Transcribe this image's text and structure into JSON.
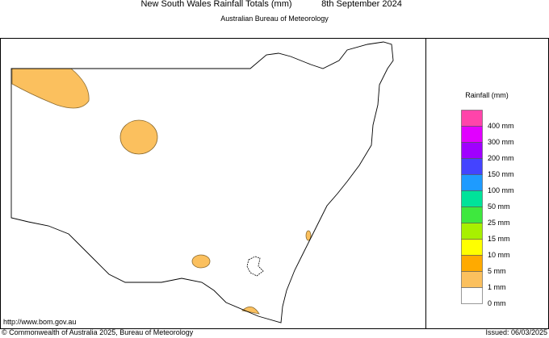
{
  "header": {
    "title": "New South Wales Rainfall Totals (mm)",
    "date": "8th September 2024",
    "subtitle": "Australian Bureau of Meteorology"
  },
  "legend": {
    "title": "Rainfall (mm)",
    "items": [
      {
        "label": "400 mm",
        "color": "#ff44aa"
      },
      {
        "label": "300 mm",
        "color": "#e100ff"
      },
      {
        "label": "200 mm",
        "color": "#a000ff"
      },
      {
        "label": "150 mm",
        "color": "#4444ff"
      },
      {
        "label": "100 mm",
        "color": "#1e9bff"
      },
      {
        "label": "50 mm",
        "color": "#00e39a"
      },
      {
        "label": "25 mm",
        "color": "#3ee83e"
      },
      {
        "label": "15 mm",
        "color": "#a8f000"
      },
      {
        "label": "10 mm",
        "color": "#ffff00"
      },
      {
        "label": "5 mm",
        "color": "#ffaa00"
      },
      {
        "label": "1 mm",
        "color": "#fbc05e"
      },
      {
        "label": "0 mm",
        "color": "#ffffff"
      }
    ]
  },
  "footer": {
    "url": "http://www.bom.gov.au",
    "copyright": "© Commonwealth of Australia 2025, Bureau of Meteorology",
    "issued": "Issued: 06/03/2025"
  }
}
